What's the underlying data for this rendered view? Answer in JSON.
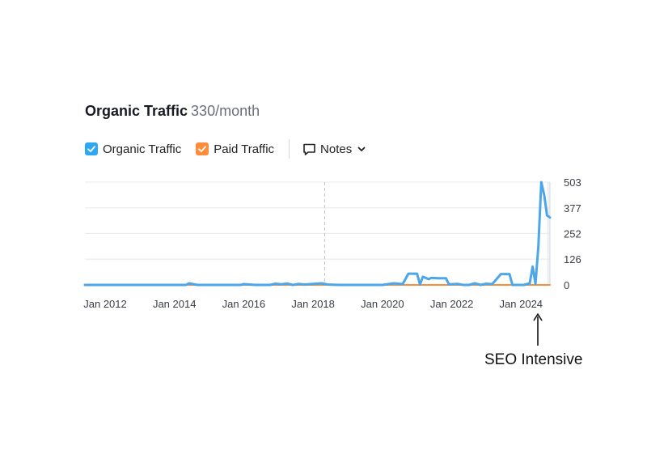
{
  "header": {
    "title": "Organic Traffic",
    "subtitle": "330/month"
  },
  "legend": {
    "items": [
      {
        "label": "Organic Traffic",
        "color": "#2ea8f3",
        "checked": true
      },
      {
        "label": "Paid Traffic",
        "color": "#ff8c3b",
        "checked": true
      }
    ],
    "notes_label": "Notes"
  },
  "annotation": {
    "text": "SEO Intensive"
  },
  "chart_data": {
    "type": "line",
    "title": "Organic Traffic",
    "xlabel": "",
    "ylabel": "",
    "xlim": [
      "2011-06",
      "2024-11"
    ],
    "ylim": [
      0,
      503
    ],
    "yticks": [
      0,
      126,
      252,
      377,
      503
    ],
    "ytick_labels": [
      "0",
      "126",
      "252",
      "377",
      "503"
    ],
    "xticks": [
      "2012-01",
      "2014-01",
      "2016-01",
      "2018-01",
      "2020-01",
      "2022-01",
      "2024-01"
    ],
    "xtick_labels": [
      "Jan 2012",
      "Jan 2014",
      "Jan 2016",
      "Jan 2018",
      "Jan 2020",
      "Jan 2022",
      "Jan 2024"
    ],
    "grid": true,
    "marker_date": "2018-05",
    "highlight_from": "2024-10",
    "legend": "top-left",
    "series": [
      {
        "name": "Organic Traffic",
        "color": "#4da6e8",
        "points": [
          [
            "2011-06",
            0
          ],
          [
            "2014-05",
            0
          ],
          [
            "2014-06",
            8
          ],
          [
            "2014-09",
            0
          ],
          [
            "2015-12",
            0
          ],
          [
            "2016-01",
            4
          ],
          [
            "2016-05",
            0
          ],
          [
            "2016-10",
            0
          ],
          [
            "2016-12",
            6
          ],
          [
            "2017-02",
            3
          ],
          [
            "2017-04",
            7
          ],
          [
            "2017-06",
            0
          ],
          [
            "2017-08",
            5
          ],
          [
            "2017-10",
            2
          ],
          [
            "2017-12",
            4
          ],
          [
            "2018-02",
            6
          ],
          [
            "2018-04",
            8
          ],
          [
            "2018-06",
            2
          ],
          [
            "2018-10",
            0
          ],
          [
            "2020-01",
            0
          ],
          [
            "2020-05",
            8
          ],
          [
            "2020-08",
            4
          ],
          [
            "2020-10",
            55
          ],
          [
            "2021-01",
            55
          ],
          [
            "2021-02",
            2
          ],
          [
            "2021-03",
            40
          ],
          [
            "2021-05",
            28
          ],
          [
            "2021-06",
            35
          ],
          [
            "2021-08",
            33
          ],
          [
            "2021-11",
            33
          ],
          [
            "2021-12",
            3
          ],
          [
            "2022-03",
            5
          ],
          [
            "2022-05",
            0
          ],
          [
            "2022-07",
            0
          ],
          [
            "2022-09",
            8
          ],
          [
            "2022-11",
            0
          ],
          [
            "2023-01",
            6
          ],
          [
            "2023-03",
            4
          ],
          [
            "2023-06",
            53
          ],
          [
            "2023-09",
            53
          ],
          [
            "2023-10",
            0
          ],
          [
            "2024-02",
            0
          ],
          [
            "2024-04",
            8
          ],
          [
            "2024-05",
            90
          ],
          [
            "2024-06",
            5
          ],
          [
            "2024-07",
            190
          ],
          [
            "2024-08",
            503
          ],
          [
            "2024-09",
            440
          ],
          [
            "2024-10",
            340
          ],
          [
            "2024-11",
            330
          ]
        ]
      },
      {
        "name": "Paid Traffic",
        "color": "#ff8c3b",
        "points": [
          [
            "2011-06",
            0
          ],
          [
            "2024-11",
            0
          ]
        ]
      }
    ]
  }
}
